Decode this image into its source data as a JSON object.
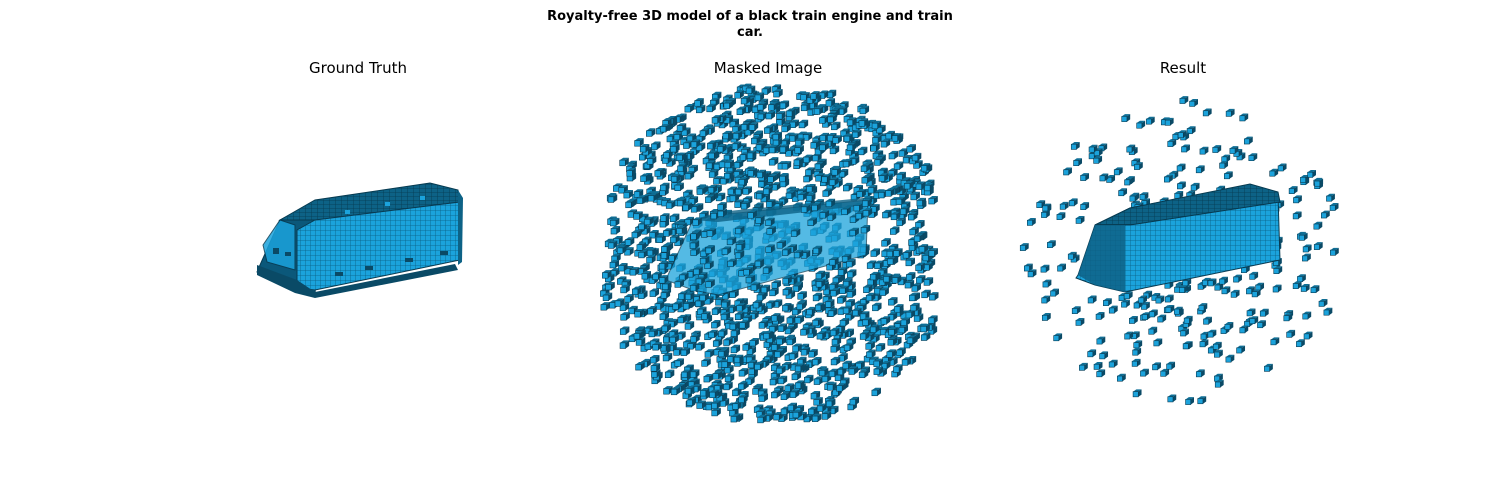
{
  "figure": {
    "suptitle_line1": "Royalty-free 3D model of a black train engine and train",
    "suptitle_line2": "car."
  },
  "panels": [
    {
      "title": "Ground Truth"
    },
    {
      "title": "Masked Image"
    },
    {
      "title": "Result"
    }
  ],
  "colors": {
    "voxel_face": "#1ba3dc",
    "voxel_top": "#0f6f96",
    "voxel_dark": "#0a4a66",
    "voxel_edge": "#083b52"
  }
}
